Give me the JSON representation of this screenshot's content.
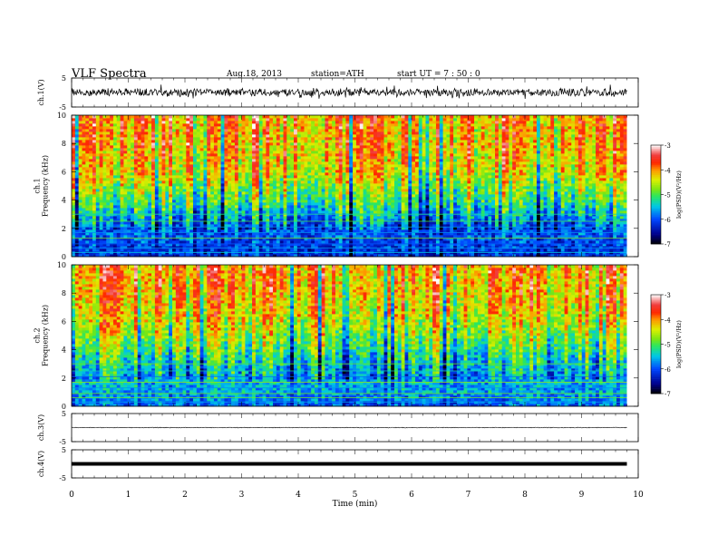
{
  "header": {
    "title": "VLF  Spectra",
    "date": "Aug.18, 2013",
    "station": "station=ATH",
    "start": "start  UT  =   7 : 50 : 0"
  },
  "chart_data": [
    {
      "type": "line",
      "panel": "ch1-waveform",
      "ylabel": "ch.1(V)",
      "ylim": [
        -5,
        5
      ],
      "yticks": [
        "5",
        "-5"
      ],
      "xlim": [
        0,
        10
      ],
      "trace_end_min": 9.8,
      "description_level": "noisy waveform oscillating roughly between -1.5 and 2.5 V",
      "baseline": 0
    },
    {
      "type": "heatmap",
      "panel": "ch1-spectrogram",
      "ylabel": "ch.1\nFrequency  (kHz)",
      "ylim": [
        0,
        10
      ],
      "yticks": [
        "0",
        "2",
        "4",
        "6",
        "8",
        "10"
      ],
      "xlim": [
        0,
        10
      ],
      "trace_end_min": 9.8,
      "colorbar": {
        "label": "log(PSD)(V²/Hz)",
        "range": [
          -7,
          -3
        ],
        "ticks": [
          "-3",
          "-4",
          "-5",
          "-6",
          "-7"
        ]
      },
      "profile_kHz": [
        [
          0,
          -6.2
        ],
        [
          1,
          -6.0
        ],
        [
          2,
          -5.9
        ],
        [
          3,
          -5.4
        ],
        [
          4,
          -4.9
        ],
        [
          5,
          -4.6
        ],
        [
          6,
          -4.2
        ],
        [
          8,
          -4.0
        ],
        [
          10,
          -3.9
        ]
      ]
    },
    {
      "type": "heatmap",
      "panel": "ch2-spectrogram",
      "ylabel": "ch.2\nFrequency  (kHz)",
      "ylim": [
        0,
        10
      ],
      "yticks": [
        "0",
        "2",
        "4",
        "6",
        "8",
        "10"
      ],
      "xlim": [
        0,
        10
      ],
      "trace_end_min": 9.8,
      "colorbar": {
        "label": "log(PSD)(V²/Hz)",
        "range": [
          -7,
          -3
        ],
        "ticks": [
          "-3",
          "-4",
          "-5",
          "-6",
          "-7"
        ]
      },
      "profile_kHz": [
        [
          0,
          -5.9
        ],
        [
          1,
          -5.6
        ],
        [
          2,
          -5.5
        ],
        [
          3,
          -5.3
        ],
        [
          4,
          -4.9
        ],
        [
          5,
          -4.6
        ],
        [
          6,
          -4.3
        ],
        [
          8,
          -4.0
        ],
        [
          10,
          -3.9
        ]
      ]
    },
    {
      "type": "line",
      "panel": "ch3-waveform",
      "ylabel": "ch.3(V)",
      "ylim": [
        -5,
        5
      ],
      "yticks": [
        "5",
        "-5"
      ],
      "xlim": [
        0,
        10
      ],
      "trace_end_min": 9.8,
      "baseline": 0
    },
    {
      "type": "line",
      "panel": "ch4-waveform",
      "ylabel": "ch.4(V)",
      "ylim": [
        -5,
        5
      ],
      "yticks": [
        "5",
        "-5"
      ],
      "xlim": [
        0,
        10
      ],
      "trace_end_min": 9.8,
      "baseline": 0
    }
  ],
  "xaxis": {
    "label": "Time  (min)",
    "ticks": [
      "0",
      "1",
      "2",
      "3",
      "4",
      "5",
      "6",
      "7",
      "8",
      "9",
      "10"
    ]
  }
}
